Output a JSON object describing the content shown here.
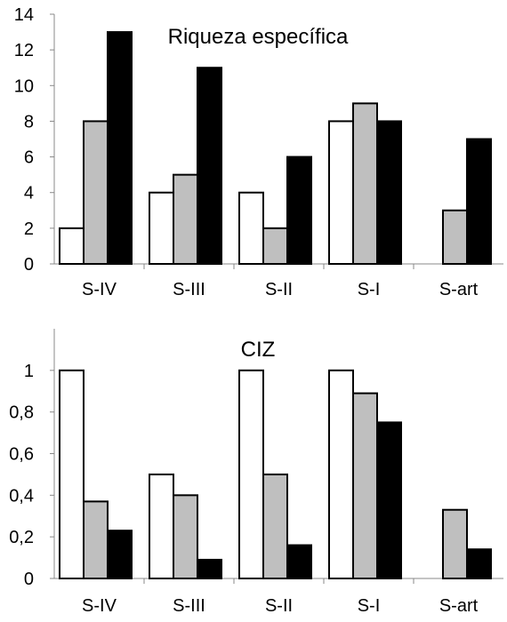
{
  "chart_data": [
    {
      "type": "bar",
      "title": "Riqueza específica",
      "categories": [
        "S-IV",
        "S-III",
        "S-II",
        "S-I",
        "S-art"
      ],
      "series": [
        {
          "values": [
            2,
            4,
            4,
            8,
            0
          ],
          "color": "#ffffff"
        },
        {
          "values": [
            8,
            5,
            2,
            9,
            3
          ],
          "color": "#bfbfbf"
        },
        {
          "values": [
            13,
            11,
            6,
            8,
            7
          ],
          "color": "#000000"
        }
      ],
      "ylim": [
        0,
        14
      ],
      "yticks": [
        0,
        2,
        4,
        6,
        8,
        10,
        12,
        14
      ],
      "ytick_labels": [
        "0",
        "2",
        "4",
        "6",
        "8",
        "10",
        "12",
        "14"
      ],
      "xlabel": "",
      "ylabel": "",
      "grid": false
    },
    {
      "type": "bar",
      "title": "CIZ",
      "categories": [
        "S-IV",
        "S-III",
        "S-II",
        "S-I",
        "S-art"
      ],
      "series": [
        {
          "values": [
            1,
            0.5,
            1,
            1,
            0
          ],
          "color": "#ffffff"
        },
        {
          "values": [
            0.37,
            0.4,
            0.5,
            0.89,
            0.33
          ],
          "color": "#bfbfbf"
        },
        {
          "values": [
            0.23,
            0.09,
            0.16,
            0.75,
            0.14
          ],
          "color": "#000000"
        }
      ],
      "ylim": [
        0,
        1.2
      ],
      "yticks": [
        0,
        0.2,
        0.4,
        0.6,
        0.8,
        1
      ],
      "ytick_labels": [
        "0",
        "0,2",
        "0,4",
        "0,6",
        "0,8",
        "1"
      ],
      "xlabel": "",
      "ylabel": "",
      "grid": false
    }
  ]
}
